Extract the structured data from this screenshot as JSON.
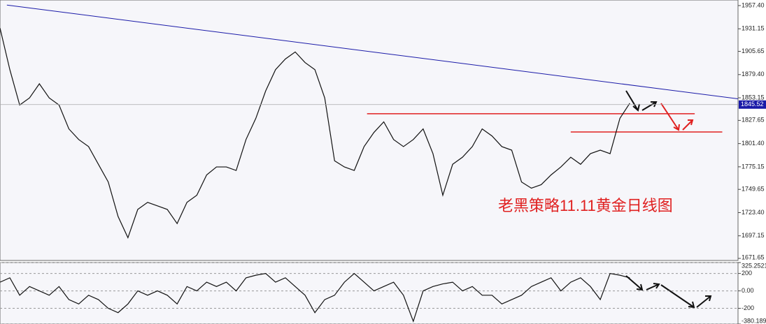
{
  "chart_data": [
    {
      "type": "line",
      "values": [
        1932,
        1885,
        1845,
        1853,
        1869,
        1853,
        1845,
        1818,
        1806,
        1798,
        1778,
        1758,
        1719,
        1695,
        1727,
        1735,
        1731,
        1727,
        1711,
        1735,
        1743,
        1766,
        1775,
        1775,
        1771,
        1806,
        1830,
        1861,
        1885,
        1897,
        1905,
        1893,
        1885,
        1853,
        1782,
        1775,
        1771,
        1798,
        1814,
        1826,
        1806,
        1798,
        1806,
        1818,
        1790,
        1743,
        1778,
        1786,
        1798,
        1818,
        1810,
        1798,
        1794,
        1758,
        1751,
        1755,
        1766,
        1775,
        1786,
        1778,
        1790,
        1794,
        1790,
        1830,
        1847
      ],
      "color": "#111111",
      "xlim": [
        0,
        75
      ],
      "ylim": [
        1669.3,
        1963.7
      ],
      "yticks": [
        {
          "value": 1957.4,
          "label": "1957.40"
        },
        1931.15,
        1905.65,
        {
          "value": 1879.4,
          "label": "1879.40"
        },
        1853.15,
        1827.65,
        {
          "value": 1801.4,
          "label": "1801.40"
        },
        1775.15,
        1749.65,
        {
          "value": 1723.4,
          "label": "1723.40"
        },
        1697.15,
        1671.65
      ],
      "grid": false,
      "current_price": 1845.52,
      "trendline": {
        "x": [
          0.7,
          75
        ],
        "y": [
          1958,
          1852
        ],
        "color": "#1a1aa8"
      },
      "levels": [
        {
          "x": [
            37.3,
            70.6
          ],
          "y": 1835.1
        },
        {
          "x": [
            58,
            73.4
          ],
          "y": 1814.5
        }
      ],
      "level_color": "#e02020",
      "annotation": "老黑策略11.11黄金日线图"
    },
    {
      "type": "line",
      "values": [
        100,
        150,
        -50,
        50,
        0,
        -50,
        50,
        -100,
        -150,
        -50,
        -100,
        -200,
        -250,
        -150,
        0,
        -50,
        0,
        -50,
        -150,
        50,
        0,
        100,
        50,
        100,
        0,
        150,
        180,
        200,
        100,
        150,
        50,
        -50,
        -250,
        -100,
        -50,
        100,
        200,
        100,
        0,
        50,
        100,
        -50,
        -350,
        0,
        50,
        80,
        100,
        0,
        50,
        -50,
        -50,
        -150,
        -100,
        -50,
        50,
        100,
        150,
        0,
        100,
        150,
        50,
        -100,
        200,
        180,
        150
      ],
      "color": "#111111",
      "xlim": [
        0,
        75
      ],
      "ylim": [
        -380.189,
        325.2521
      ],
      "yticks": [
        325.2521,
        200,
        {
          "value": 0,
          "label": "0.00"
        },
        -200,
        -380.189
      ],
      "grid": true
    }
  ]
}
